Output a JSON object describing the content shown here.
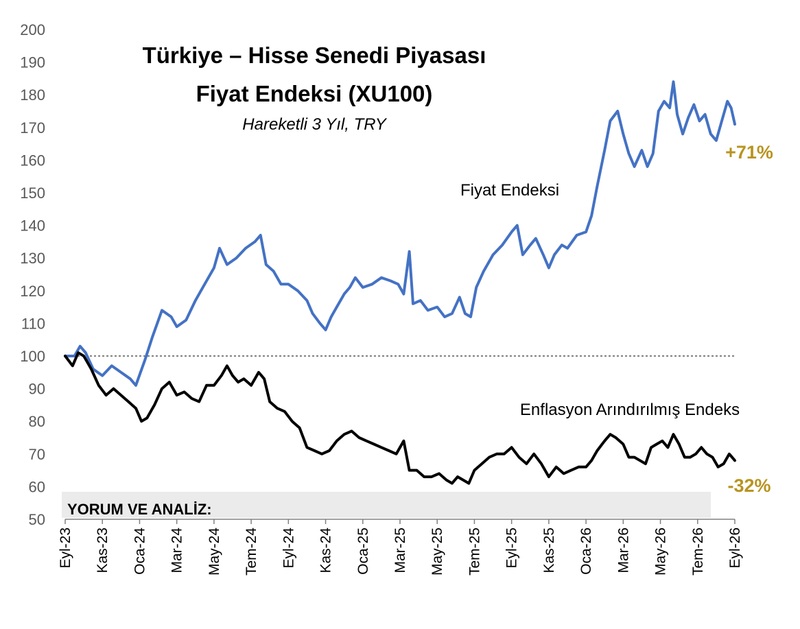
{
  "chart_data": {
    "type": "line",
    "title_line1": "Türkiye – Hisse Senedi Piyasası",
    "title_line2": "Fiyat Endeksi (XU100)",
    "subtitle": "Hareketli 3 Yıl, TRY",
    "ylim": [
      50,
      200
    ],
    "yticks": [
      50,
      60,
      70,
      80,
      90,
      100,
      110,
      120,
      130,
      140,
      150,
      160,
      170,
      180,
      190,
      200
    ],
    "xlim": [
      0,
      36
    ],
    "xticks": [
      {
        "x": 0,
        "label": "Eyl-23"
      },
      {
        "x": 2,
        "label": "Kas-23"
      },
      {
        "x": 4,
        "label": "Oca-24"
      },
      {
        "x": 6,
        "label": "Mar-24"
      },
      {
        "x": 8,
        "label": "May-24"
      },
      {
        "x": 10,
        "label": "Tem-24"
      },
      {
        "x": 12,
        "label": "Eyl-24"
      },
      {
        "x": 14,
        "label": "Kas-24"
      },
      {
        "x": 16,
        "label": "Oca-25"
      },
      {
        "x": 18,
        "label": "Mar-25"
      },
      {
        "x": 20,
        "label": "May-25"
      },
      {
        "x": 22,
        "label": "Tem-25"
      },
      {
        "x": 24,
        "label": "Eyl-25"
      },
      {
        "x": 26,
        "label": "Kas-25"
      },
      {
        "x": 28,
        "label": "Oca-26"
      },
      {
        "x": 30,
        "label": "Mar-26"
      },
      {
        "x": 32,
        "label": "May-26"
      },
      {
        "x": 34,
        "label": "Tem-26"
      },
      {
        "x": 36,
        "label": "Eyl-26"
      }
    ],
    "reference_line": 100,
    "grid": false,
    "series": [
      {
        "name": "Fiyat Endeksi",
        "color": "#4472C4",
        "end_label": "+71%",
        "points": [
          [
            0,
            100
          ],
          [
            0.5,
            100
          ],
          [
            0.8,
            103
          ],
          [
            1.1,
            101
          ],
          [
            1.5,
            96
          ],
          [
            2,
            94
          ],
          [
            2.5,
            97
          ],
          [
            3,
            95
          ],
          [
            3.5,
            93
          ],
          [
            3.8,
            91
          ],
          [
            4.3,
            99
          ],
          [
            4.7,
            106
          ],
          [
            5.2,
            114
          ],
          [
            5.7,
            112
          ],
          [
            6,
            109
          ],
          [
            6.5,
            111
          ],
          [
            7,
            117
          ],
          [
            7.5,
            122
          ],
          [
            8,
            127
          ],
          [
            8.3,
            133
          ],
          [
            8.7,
            128
          ],
          [
            9.2,
            130
          ],
          [
            9.7,
            133
          ],
          [
            10.2,
            135
          ],
          [
            10.5,
            137
          ],
          [
            10.8,
            128
          ],
          [
            11.2,
            126
          ],
          [
            11.6,
            122
          ],
          [
            12,
            122
          ],
          [
            12.5,
            120
          ],
          [
            13,
            117
          ],
          [
            13.3,
            113
          ],
          [
            13.7,
            110
          ],
          [
            14,
            108
          ],
          [
            14.3,
            112
          ],
          [
            14.6,
            115
          ],
          [
            15,
            119
          ],
          [
            15.3,
            121
          ],
          [
            15.6,
            124
          ],
          [
            16,
            121
          ],
          [
            16.5,
            122
          ],
          [
            17,
            124
          ],
          [
            17.5,
            123
          ],
          [
            17.9,
            122
          ],
          [
            18.2,
            119
          ],
          [
            18.5,
            132
          ],
          [
            18.7,
            116
          ],
          [
            19.1,
            117
          ],
          [
            19.5,
            114
          ],
          [
            20,
            115
          ],
          [
            20.4,
            112
          ],
          [
            20.8,
            113
          ],
          [
            21.2,
            118
          ],
          [
            21.5,
            113
          ],
          [
            21.8,
            112
          ],
          [
            22.1,
            121
          ],
          [
            22.5,
            126
          ],
          [
            23,
            131
          ],
          [
            23.5,
            134
          ],
          [
            24,
            138
          ],
          [
            24.3,
            140
          ],
          [
            24.6,
            131
          ],
          [
            25,
            134
          ],
          [
            25.3,
            136
          ],
          [
            25.7,
            131
          ],
          [
            26,
            127
          ],
          [
            26.3,
            131
          ],
          [
            26.7,
            134
          ],
          [
            27,
            133
          ],
          [
            27.5,
            137
          ],
          [
            28,
            138
          ],
          [
            28.3,
            143
          ],
          [
            28.6,
            152
          ],
          [
            29,
            163
          ],
          [
            29.3,
            172
          ],
          [
            29.7,
            175
          ],
          [
            30,
            168
          ],
          [
            30.3,
            162
          ],
          [
            30.6,
            158
          ],
          [
            31,
            163
          ],
          [
            31.3,
            158
          ],
          [
            31.6,
            162
          ],
          [
            31.9,
            175
          ],
          [
            32.2,
            178
          ],
          [
            32.5,
            176
          ],
          [
            32.7,
            184
          ],
          [
            32.9,
            174
          ],
          [
            33.2,
            168
          ],
          [
            33.5,
            173
          ],
          [
            33.8,
            177
          ],
          [
            34.1,
            172
          ],
          [
            34.4,
            174
          ],
          [
            34.7,
            168
          ],
          [
            35,
            166
          ],
          [
            35.3,
            172
          ],
          [
            35.6,
            178
          ],
          [
            35.8,
            176
          ],
          [
            36,
            171
          ]
        ]
      },
      {
        "name": "Enflasyon Arındırılmış Endeks",
        "color": "#000000",
        "end_label": "-32%",
        "points": [
          [
            0,
            100
          ],
          [
            0.4,
            97
          ],
          [
            0.7,
            101
          ],
          [
            1,
            100
          ],
          [
            1.4,
            96
          ],
          [
            1.8,
            91
          ],
          [
            2.2,
            88
          ],
          [
            2.6,
            90
          ],
          [
            3,
            88
          ],
          [
            3.4,
            86
          ],
          [
            3.8,
            84
          ],
          [
            4.1,
            80
          ],
          [
            4.4,
            81
          ],
          [
            4.8,
            85
          ],
          [
            5.2,
            90
          ],
          [
            5.6,
            92
          ],
          [
            6,
            88
          ],
          [
            6.4,
            89
          ],
          [
            6.8,
            87
          ],
          [
            7.2,
            86
          ],
          [
            7.6,
            91
          ],
          [
            8,
            91
          ],
          [
            8.4,
            94
          ],
          [
            8.7,
            97
          ],
          [
            9,
            94
          ],
          [
            9.3,
            92
          ],
          [
            9.6,
            93
          ],
          [
            10,
            91
          ],
          [
            10.4,
            95
          ],
          [
            10.7,
            93
          ],
          [
            11,
            86
          ],
          [
            11.4,
            84
          ],
          [
            11.8,
            83
          ],
          [
            12.2,
            80
          ],
          [
            12.6,
            78
          ],
          [
            13,
            72
          ],
          [
            13.4,
            71
          ],
          [
            13.8,
            70
          ],
          [
            14.2,
            71
          ],
          [
            14.6,
            74
          ],
          [
            15,
            76
          ],
          [
            15.4,
            77
          ],
          [
            15.8,
            75
          ],
          [
            16.2,
            74
          ],
          [
            16.6,
            73
          ],
          [
            17,
            72
          ],
          [
            17.4,
            71
          ],
          [
            17.8,
            70
          ],
          [
            18.2,
            74
          ],
          [
            18.5,
            65
          ],
          [
            18.9,
            65
          ],
          [
            19.3,
            63
          ],
          [
            19.7,
            63
          ],
          [
            20.1,
            64
          ],
          [
            20.5,
            62
          ],
          [
            20.8,
            61
          ],
          [
            21.1,
            63
          ],
          [
            21.4,
            62
          ],
          [
            21.7,
            61
          ],
          [
            22,
            65
          ],
          [
            22.4,
            67
          ],
          [
            22.8,
            69
          ],
          [
            23.2,
            70
          ],
          [
            23.6,
            70
          ],
          [
            24,
            72
          ],
          [
            24.4,
            69
          ],
          [
            24.8,
            67
          ],
          [
            25.2,
            70
          ],
          [
            25.6,
            67
          ],
          [
            26,
            63
          ],
          [
            26.4,
            66
          ],
          [
            26.8,
            64
          ],
          [
            27.2,
            65
          ],
          [
            27.6,
            66
          ],
          [
            28,
            66
          ],
          [
            28.3,
            68
          ],
          [
            28.6,
            71
          ],
          [
            29,
            74
          ],
          [
            29.3,
            76
          ],
          [
            29.6,
            75
          ],
          [
            30,
            73
          ],
          [
            30.3,
            69
          ],
          [
            30.6,
            69
          ],
          [
            30.9,
            68
          ],
          [
            31.2,
            67
          ],
          [
            31.5,
            72
          ],
          [
            31.8,
            73
          ],
          [
            32.1,
            74
          ],
          [
            32.4,
            72
          ],
          [
            32.7,
            76
          ],
          [
            33,
            73
          ],
          [
            33.3,
            69
          ],
          [
            33.6,
            69
          ],
          [
            33.9,
            70
          ],
          [
            34.2,
            72
          ],
          [
            34.5,
            70
          ],
          [
            34.8,
            69
          ],
          [
            35.1,
            66
          ],
          [
            35.4,
            67
          ],
          [
            35.7,
            70
          ],
          [
            36,
            68
          ]
        ]
      }
    ]
  },
  "annotation": {
    "comment_label": "YORUM VE ANALİZ:"
  }
}
